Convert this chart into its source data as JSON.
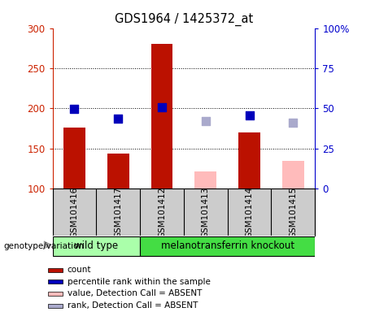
{
  "title": "GDS1964 / 1425372_at",
  "samples": [
    "GSM101416",
    "GSM101417",
    "GSM101412",
    "GSM101413",
    "GSM101414",
    "GSM101415"
  ],
  "genotype_labels": [
    "wild type",
    "melanotransferrin knockout"
  ],
  "wt_count": 2,
  "bar_bottom": 100,
  "present_counts": [
    176,
    144,
    280,
    null,
    170,
    null
  ],
  "present_ranks": [
    49.5,
    43.5,
    50.5,
    null,
    45.5,
    null
  ],
  "absent_counts": [
    null,
    null,
    null,
    122,
    null,
    135
  ],
  "absent_ranks": [
    null,
    null,
    null,
    42.0,
    null,
    41.0
  ],
  "ylim_left": [
    100,
    300
  ],
  "ylim_right": [
    0,
    100
  ],
  "yticks_left": [
    100,
    150,
    200,
    250,
    300
  ],
  "ytick_labels_left": [
    "100",
    "150",
    "200",
    "250",
    "300"
  ],
  "yticks_right": [
    0,
    25,
    50,
    75,
    100
  ],
  "ytick_labels_right": [
    "0",
    "25",
    "50",
    "75",
    "100%"
  ],
  "bar_width": 0.5,
  "color_present_bar": "#bb1100",
  "color_present_rank": "#0000bb",
  "color_absent_bar": "#ffbbbb",
  "color_absent_rank": "#aaaacc",
  "color_wt_bg": "#aaffaa",
  "color_ko_bg": "#44dd44",
  "color_axis_left": "#cc2200",
  "color_axis_right": "#0000cc",
  "legend_items": [
    {
      "color": "#bb1100",
      "label": "count"
    },
    {
      "color": "#0000bb",
      "label": "percentile rank within the sample"
    },
    {
      "color": "#ffbbbb",
      "label": "value, Detection Call = ABSENT"
    },
    {
      "color": "#aaaacc",
      "label": "rank, Detection Call = ABSENT"
    }
  ],
  "plot_bg": "#ffffff",
  "axes_bg": "#ffffff",
  "sample_bg": "#cccccc",
  "grid_yticks": [
    150,
    200,
    250
  ],
  "marker_size": 55
}
